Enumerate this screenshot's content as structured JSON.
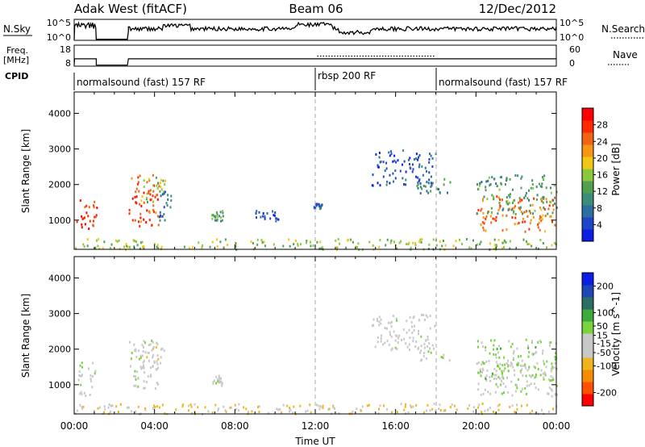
{
  "header": {
    "station": "Adak West (fitACF)",
    "beam": "Beam 06",
    "date": "12/Dec/2012"
  },
  "nsky_panel": {
    "left_label": "N.Sky",
    "left_ticks": [
      "10^5",
      "10^0"
    ],
    "right_ticks": [
      "10^5",
      "10^0"
    ],
    "right_label": "N.Search"
  },
  "freq_panel": {
    "label_line1": "Freq.",
    "label_line2": "[MHz]",
    "left_ticks": [
      "18",
      "8"
    ],
    "right_ticks": [
      "60",
      "0"
    ],
    "right_label": "Nave"
  },
  "cpid": {
    "label": "CPID",
    "segments": [
      {
        "name": "normalsound (fast) 157 RF",
        "start_h": 0,
        "end_h": 12
      },
      {
        "name": "rbsp 200 RF",
        "start_h": 12,
        "end_h": 18
      },
      {
        "name": "normalsound (fast) 157 RF",
        "start_h": 18,
        "end_h": 24
      }
    ]
  },
  "colors": {
    "power_scale": [
      "#0a1ee6",
      "#1e46c8",
      "#2d6ea0",
      "#3c8c78",
      "#50a050",
      "#8cc83c",
      "#f0c814",
      "#f59614",
      "#f06414",
      "#ff2800",
      "#ff0000"
    ],
    "velocity_scale": [
      "#ff0000",
      "#ff5000",
      "#f58c00",
      "#f0b41e",
      "#c8c8c8",
      "#c8c8c8",
      "#7ad23c",
      "#3caa3c",
      "#2d6e64",
      "#1e46b4",
      "#0a1ee6"
    ]
  },
  "chart_data": [
    {
      "type": "heatmap",
      "name": "power",
      "ylabel": "Slant Range [km]",
      "ylim": [
        180,
        4600
      ],
      "xlim_hours": [
        0,
        24
      ],
      "yticks": [
        1000,
        2000,
        3000,
        4000
      ],
      "colorbar": {
        "label": "Power [dB]",
        "ticks": [
          4,
          8,
          12,
          16,
          20,
          24,
          28
        ],
        "range": [
          0,
          32
        ]
      },
      "blobs": [
        {
          "x0": 0.1,
          "x1": 1.1,
          "y0": 700,
          "y1": 1700,
          "v": 28
        },
        {
          "x0": 2.7,
          "x1": 4.2,
          "y0": 850,
          "y1": 2300,
          "v": 26
        },
        {
          "x0": 3.3,
          "x1": 4.5,
          "y0": 1500,
          "y1": 2300,
          "v": 16
        },
        {
          "x0": 4.2,
          "x1": 4.8,
          "y0": 1000,
          "y1": 1900,
          "v": 8
        },
        {
          "x0": 6.8,
          "x1": 7.4,
          "y0": 1000,
          "y1": 1300,
          "v": 12
        },
        {
          "x0": 9.0,
          "x1": 10.2,
          "y0": 1000,
          "y1": 1300,
          "v": 6
        },
        {
          "x0": 11.9,
          "x1": 12.3,
          "y0": 1350,
          "y1": 1500,
          "v": 6
        },
        {
          "x0": 14.8,
          "x1": 18.0,
          "y0": 2000,
          "y1": 3000,
          "v": 5
        },
        {
          "x0": 17.0,
          "x1": 18.8,
          "y0": 1700,
          "y1": 2200,
          "v": 10
        },
        {
          "x0": 20.0,
          "x1": 24.0,
          "y0": 700,
          "y1": 1700,
          "v": 24
        },
        {
          "x0": 20.0,
          "x1": 24.0,
          "y0": 1200,
          "y1": 2300,
          "v": 12
        },
        {
          "x0": 0.0,
          "x1": 24.0,
          "y0": 200,
          "y1": 500,
          "v": 16
        }
      ]
    },
    {
      "type": "heatmap",
      "name": "velocity",
      "ylabel": "Slant Range [km]",
      "xlabel": "Time UT",
      "ylim": [
        180,
        4600
      ],
      "xlim_hours": [
        0,
        24
      ],
      "yticks": [
        1000,
        2000,
        3000,
        4000
      ],
      "xtick_labels": [
        "00:00",
        "04:00",
        "08:00",
        "12:00",
        "16:00",
        "20:00",
        "00:00"
      ],
      "colorbar": {
        "label": "Velocity [m s^-1]",
        "ticks": [
          -200,
          -100,
          -50,
          -15,
          15,
          50,
          100,
          200
        ],
        "range": [
          -250,
          250
        ]
      },
      "blobs": [
        {
          "x0": 0.1,
          "x1": 1.1,
          "y0": 700,
          "y1": 1700,
          "v": 0
        },
        {
          "x0": 2.7,
          "x1": 4.2,
          "y0": 850,
          "y1": 2300,
          "v": 0
        },
        {
          "x0": 3.3,
          "x1": 4.5,
          "y0": 1500,
          "y1": 2300,
          "v": -30
        },
        {
          "x0": 6.8,
          "x1": 7.4,
          "y0": 1000,
          "y1": 1300,
          "v": 0
        },
        {
          "x0": 14.8,
          "x1": 18.0,
          "y0": 2000,
          "y1": 3000,
          "v": -20
        },
        {
          "x0": 17.0,
          "x1": 18.8,
          "y0": 1700,
          "y1": 2200,
          "v": 0
        },
        {
          "x0": 20.0,
          "x1": 24.0,
          "y0": 700,
          "y1": 1700,
          "v": 0
        },
        {
          "x0": 20.0,
          "x1": 24.0,
          "y0": 1200,
          "y1": 2300,
          "v": 30
        },
        {
          "x0": 0.0,
          "x1": 24.0,
          "y0": 200,
          "y1": 500,
          "v": -60
        }
      ]
    }
  ]
}
